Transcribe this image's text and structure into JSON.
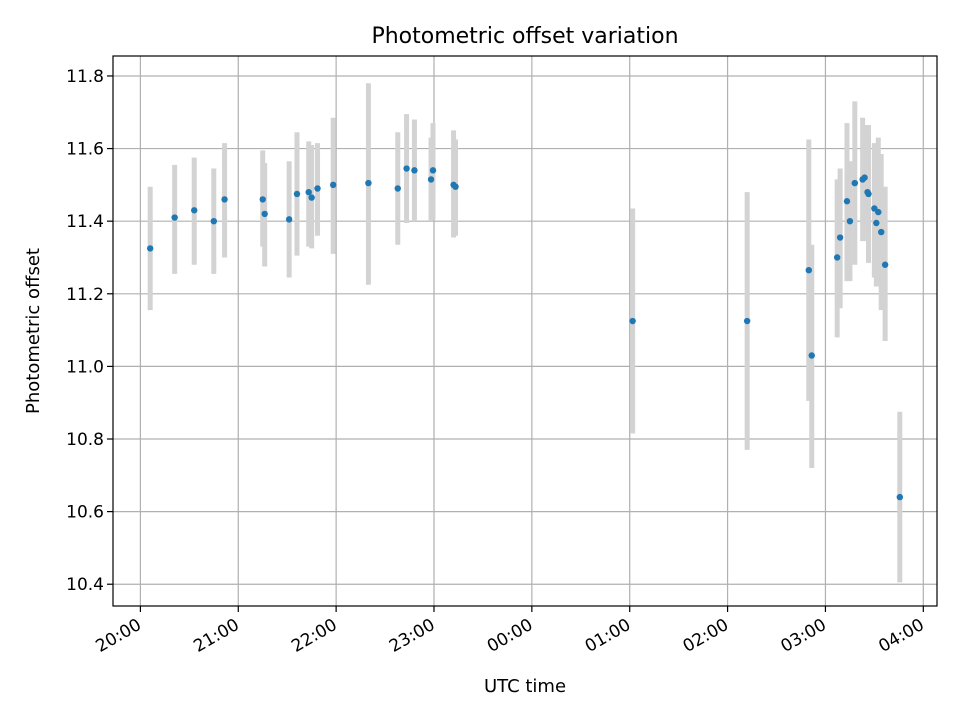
{
  "chart_data": {
    "type": "scatter",
    "title": "Photometric offset variation",
    "xlabel": "UTC time",
    "ylabel": "Photometric offset",
    "grid": true,
    "x_unit": "UTC time (hours, 20.0 = 20:00, 24.0 = 00:00 next day)",
    "xlim": [
      19.72,
      28.14
    ],
    "ylim": [
      10.34,
      11.855
    ],
    "x_ticks": [
      20,
      21,
      22,
      23,
      24,
      25,
      26,
      27,
      28
    ],
    "x_tick_labels": [
      "20:00",
      "21:00",
      "22:00",
      "23:00",
      "00:00",
      "01:00",
      "02:00",
      "03:00",
      "04:00"
    ],
    "y_ticks": [
      10.4,
      10.6,
      10.8,
      11.0,
      11.2,
      11.4,
      11.6,
      11.8
    ],
    "y_tick_labels": [
      "10.4",
      "10.6",
      "10.8",
      "11.0",
      "11.2",
      "11.4",
      "11.6",
      "11.8"
    ],
    "colors": {
      "point": "#1f77b4",
      "errorbar": "#d3d3d3",
      "grid": "#b0b0b0"
    },
    "points": [
      {
        "x": 20.1,
        "y": 11.325,
        "ylow": 11.155,
        "yhigh": 11.495
      },
      {
        "x": 20.35,
        "y": 11.41,
        "ylow": 11.255,
        "yhigh": 11.555
      },
      {
        "x": 20.55,
        "y": 11.43,
        "ylow": 11.28,
        "yhigh": 11.575
      },
      {
        "x": 20.75,
        "y": 11.4,
        "ylow": 11.255,
        "yhigh": 11.545
      },
      {
        "x": 20.86,
        "y": 11.46,
        "ylow": 11.3,
        "yhigh": 11.615
      },
      {
        "x": 21.25,
        "y": 11.46,
        "ylow": 11.33,
        "yhigh": 11.595
      },
      {
        "x": 21.27,
        "y": 11.42,
        "ylow": 11.275,
        "yhigh": 11.56
      },
      {
        "x": 21.52,
        "y": 11.405,
        "ylow": 11.245,
        "yhigh": 11.565
      },
      {
        "x": 21.6,
        "y": 11.475,
        "ylow": 11.305,
        "yhigh": 11.645
      },
      {
        "x": 21.72,
        "y": 11.48,
        "ylow": 11.33,
        "yhigh": 11.62
      },
      {
        "x": 21.75,
        "y": 11.465,
        "ylow": 11.325,
        "yhigh": 11.61
      },
      {
        "x": 21.81,
        "y": 11.49,
        "ylow": 11.36,
        "yhigh": 11.615
      },
      {
        "x": 21.97,
        "y": 11.5,
        "ylow": 11.31,
        "yhigh": 11.685
      },
      {
        "x": 22.33,
        "y": 11.505,
        "ylow": 11.225,
        "yhigh": 11.78
      },
      {
        "x": 22.63,
        "y": 11.49,
        "ylow": 11.335,
        "yhigh": 11.645
      },
      {
        "x": 22.72,
        "y": 11.545,
        "ylow": 11.395,
        "yhigh": 11.695
      },
      {
        "x": 22.8,
        "y": 11.54,
        "ylow": 11.4,
        "yhigh": 11.68
      },
      {
        "x": 22.97,
        "y": 11.515,
        "ylow": 11.4,
        "yhigh": 11.63
      },
      {
        "x": 22.99,
        "y": 11.54,
        "ylow": 11.405,
        "yhigh": 11.67
      },
      {
        "x": 23.2,
        "y": 11.5,
        "ylow": 11.355,
        "yhigh": 11.65
      },
      {
        "x": 23.22,
        "y": 11.495,
        "ylow": 11.36,
        "yhigh": 11.625
      },
      {
        "x": 25.03,
        "y": 11.125,
        "ylow": 10.815,
        "yhigh": 11.435
      },
      {
        "x": 26.2,
        "y": 11.125,
        "ylow": 10.77,
        "yhigh": 11.48
      },
      {
        "x": 26.83,
        "y": 11.265,
        "ylow": 10.905,
        "yhigh": 11.625
      },
      {
        "x": 26.86,
        "y": 11.03,
        "ylow": 10.72,
        "yhigh": 11.335
      },
      {
        "x": 27.12,
        "y": 11.3,
        "ylow": 11.08,
        "yhigh": 11.515
      },
      {
        "x": 27.15,
        "y": 11.355,
        "ylow": 11.16,
        "yhigh": 11.545
      },
      {
        "x": 27.22,
        "y": 11.455,
        "ylow": 11.235,
        "yhigh": 11.67
      },
      {
        "x": 27.25,
        "y": 11.4,
        "ylow": 11.235,
        "yhigh": 11.565
      },
      {
        "x": 27.3,
        "y": 11.505,
        "ylow": 11.28,
        "yhigh": 11.73
      },
      {
        "x": 27.38,
        "y": 11.515,
        "ylow": 11.345,
        "yhigh": 11.685
      },
      {
        "x": 27.4,
        "y": 11.52,
        "ylow": 11.38,
        "yhigh": 11.665
      },
      {
        "x": 27.43,
        "y": 11.48,
        "ylow": 11.345,
        "yhigh": 11.615
      },
      {
        "x": 27.44,
        "y": 11.475,
        "ylow": 11.285,
        "yhigh": 11.665
      },
      {
        "x": 27.5,
        "y": 11.435,
        "ylow": 11.245,
        "yhigh": 11.615
      },
      {
        "x": 27.52,
        "y": 11.395,
        "ylow": 11.22,
        "yhigh": 11.57
      },
      {
        "x": 27.54,
        "y": 11.425,
        "ylow": 11.225,
        "yhigh": 11.63
      },
      {
        "x": 27.57,
        "y": 11.37,
        "ylow": 11.155,
        "yhigh": 11.585
      },
      {
        "x": 27.61,
        "y": 11.28,
        "ylow": 11.07,
        "yhigh": 11.495
      },
      {
        "x": 27.76,
        "y": 10.64,
        "ylow": 10.405,
        "yhigh": 10.875
      }
    ]
  }
}
